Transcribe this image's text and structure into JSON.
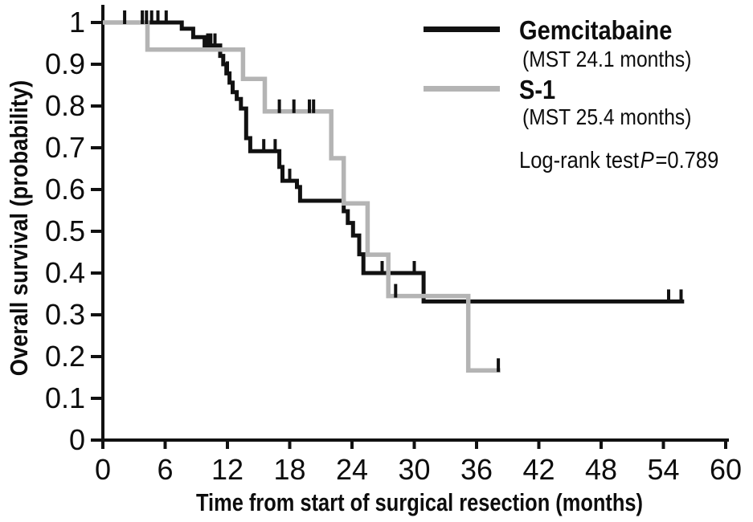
{
  "figure": {
    "ylabel": "Overall survival (probability)",
    "xlabel": "Time from start of surgical resection (months)"
  },
  "legend": {
    "items": [
      {
        "label": "Gemcitabaine",
        "sub": "(MST 24.1 months)",
        "color": "#111111"
      },
      {
        "label": "S-1",
        "sub": "(MST 25.4 months)",
        "color": "#b4b4b4"
      }
    ],
    "logrank": {
      "prefix": "Log-rank test",
      "p": "P",
      "rest": "=0.789"
    }
  },
  "chart_data": {
    "type": "line",
    "subtype": "kaplan-meier-step",
    "title": "",
    "xlabel": "Time from start of surgical resection (months)",
    "ylabel": "Overall survival (probability)",
    "xlim": [
      0,
      60
    ],
    "ylim": [
      0,
      1
    ],
    "xticks": [
      0,
      6,
      12,
      18,
      24,
      30,
      36,
      42,
      48,
      54,
      60
    ],
    "yticks": [
      {
        "v": 1.0,
        "label": "1"
      },
      {
        "v": 0.9,
        "label": "0.9"
      },
      {
        "v": 0.8,
        "label": "0.8"
      },
      {
        "v": 0.7,
        "label": "0.7"
      },
      {
        "v": 0.6,
        "label": "0.6"
      },
      {
        "v": 0.5,
        "label": "0.5"
      },
      {
        "v": 0.4,
        "label": "0.4"
      },
      {
        "v": 0.3,
        "label": "0.3"
      },
      {
        "v": 0.2,
        "label": "0.2"
      },
      {
        "v": 0.1,
        "label": "0.1"
      },
      {
        "v": 0.0,
        "label": "0"
      }
    ],
    "grid": false,
    "legend_position": "top-right",
    "axis_color": "#111111",
    "censor_mark_color": "#111111",
    "annotation": "Log-rank test P=0.789",
    "series": [
      {
        "name": "Gemcitabaine",
        "mst_months": 24.1,
        "color": "#111111",
        "width": 5,
        "end_t": 56.0,
        "steps": [
          [
            0,
            1.0
          ],
          [
            7.6,
            0.985
          ],
          [
            8.7,
            0.965
          ],
          [
            9.8,
            0.945
          ],
          [
            11.3,
            0.92
          ],
          [
            11.6,
            0.9
          ],
          [
            11.9,
            0.878
          ],
          [
            12.2,
            0.856
          ],
          [
            12.5,
            0.833
          ],
          [
            12.9,
            0.817
          ],
          [
            13.3,
            0.794
          ],
          [
            13.8,
            0.723
          ],
          [
            14.2,
            0.692
          ],
          [
            17.0,
            0.654
          ],
          [
            17.3,
            0.621
          ],
          [
            18.7,
            0.606
          ],
          [
            19.0,
            0.573
          ],
          [
            23.2,
            0.548
          ],
          [
            23.6,
            0.52
          ],
          [
            24.1,
            0.49
          ],
          [
            24.7,
            0.445
          ],
          [
            25.1,
            0.4
          ],
          [
            30.9,
            0.332
          ]
        ],
        "censor_marks": [
          [
            2.1,
            1.0
          ],
          [
            3.8,
            1.0
          ],
          [
            4.2,
            1.0
          ],
          [
            4.7,
            1.0
          ],
          [
            5.3,
            1.0
          ],
          [
            6.1,
            1.0
          ],
          [
            10.1,
            0.945
          ],
          [
            10.4,
            0.945
          ],
          [
            10.8,
            0.945
          ],
          [
            12.0,
            0.878
          ],
          [
            15.5,
            0.692
          ],
          [
            16.6,
            0.692
          ],
          [
            18.0,
            0.621
          ],
          [
            26.9,
            0.4
          ],
          [
            30.0,
            0.4
          ],
          [
            54.5,
            0.332
          ],
          [
            55.7,
            0.332
          ]
        ]
      },
      {
        "name": "S-1",
        "mst_months": 25.4,
        "color": "#b4b4b4",
        "width": 5.5,
        "end_t": 38.3,
        "steps": [
          [
            0,
            1.0
          ],
          [
            4.3,
            0.935
          ],
          [
            13.5,
            0.865
          ],
          [
            15.6,
            0.787
          ],
          [
            22.0,
            0.675
          ],
          [
            23.2,
            0.567
          ],
          [
            25.5,
            0.444
          ],
          [
            27.5,
            0.345
          ],
          [
            35.2,
            0.167
          ]
        ],
        "censor_marks": [
          [
            17.0,
            0.787
          ],
          [
            18.4,
            0.787
          ],
          [
            19.9,
            0.787
          ],
          [
            20.3,
            0.787
          ],
          [
            28.2,
            0.345
          ],
          [
            38.1,
            0.167
          ]
        ]
      }
    ]
  }
}
